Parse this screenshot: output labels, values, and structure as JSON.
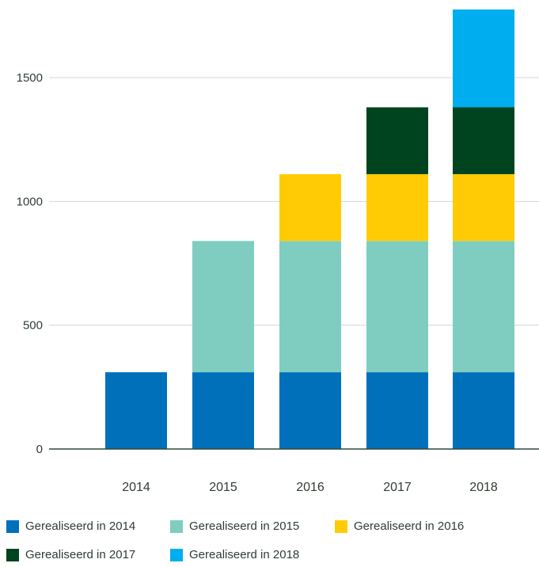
{
  "chart_data": {
    "type": "bar",
    "stacked": true,
    "categories": [
      "2014",
      "2015",
      "2016",
      "2017",
      "2018"
    ],
    "series": [
      {
        "name": "Gerealiseerd in 2014",
        "color": "#0070bb",
        "values": [
          310,
          310,
          310,
          310,
          310
        ]
      },
      {
        "name": "Gerealiseerd in 2015",
        "color": "#7ecdc0",
        "values": [
          0,
          530,
          530,
          530,
          530
        ]
      },
      {
        "name": "Gerealiseerd in 2016",
        "color": "#ffcb05",
        "values": [
          0,
          0,
          270,
          270,
          270
        ]
      },
      {
        "name": "Gerealiseerd in 2017",
        "color": "#00431f",
        "values": [
          0,
          0,
          0,
          270,
          270
        ]
      },
      {
        "name": "Gerealiseerd in 2018",
        "color": "#00adee",
        "values": [
          0,
          0,
          0,
          0,
          395
        ]
      }
    ],
    "yticks": [
      0,
      500,
      1000,
      1500
    ],
    "ylim": [
      0,
      1775
    ],
    "grid": true,
    "legend_position": "bottom"
  }
}
